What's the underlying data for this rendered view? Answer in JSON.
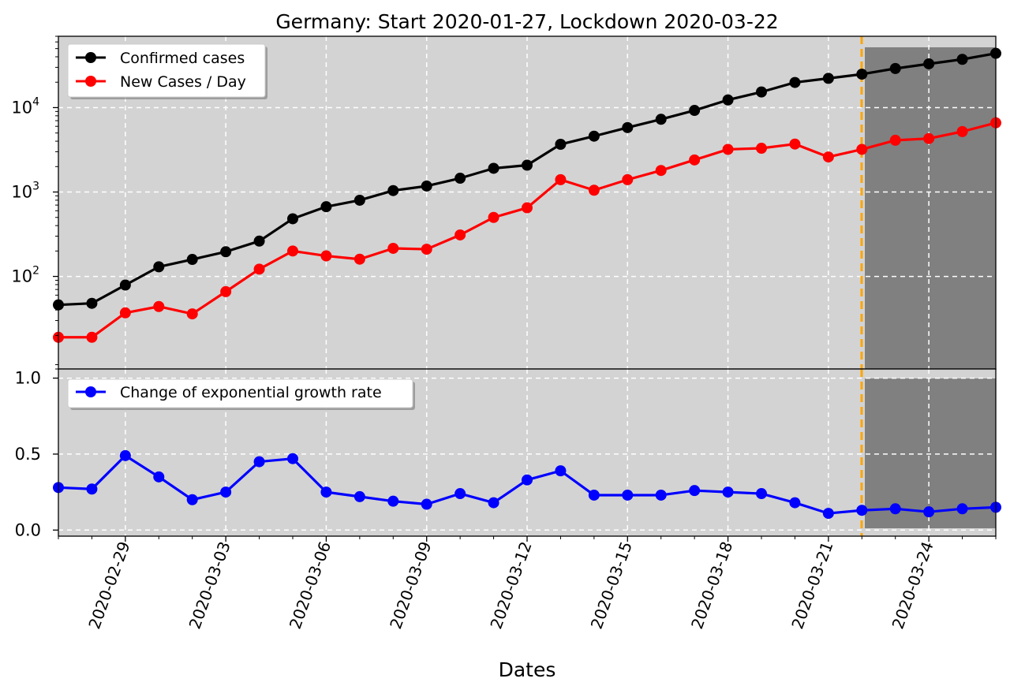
{
  "title": "Germany: Start 2020-01-27, Lockdown 2020-03-22",
  "colors": {
    "background": "#ffffff",
    "axes_bg": "#d3d3d3",
    "lockdown_shade": "#808080",
    "lockdown_line": "#ffa500",
    "grid": "#ffffff",
    "confirmed": "#000000",
    "new_cases": "#ff0000",
    "growth": "#0000ff"
  },
  "chart_data": [
    {
      "type": "line",
      "panel": "top",
      "yscale": "log",
      "ylim": [
        8,
        70000
      ],
      "grid": true,
      "legend_position": "top-left",
      "x": [
        "2020-02-27",
        "2020-02-28",
        "2020-02-29",
        "2020-03-01",
        "2020-03-02",
        "2020-03-03",
        "2020-03-04",
        "2020-03-05",
        "2020-03-06",
        "2020-03-07",
        "2020-03-08",
        "2020-03-09",
        "2020-03-10",
        "2020-03-11",
        "2020-03-12",
        "2020-03-13",
        "2020-03-14",
        "2020-03-15",
        "2020-03-16",
        "2020-03-17",
        "2020-03-18",
        "2020-03-19",
        "2020-03-20",
        "2020-03-21",
        "2020-03-22",
        "2020-03-23",
        "2020-03-24",
        "2020-03-25",
        "2020-03-26"
      ],
      "ytick_labels": [
        {
          "base": "10",
          "exp": "2",
          "value": 100
        },
        {
          "base": "10",
          "exp": "3",
          "value": 1000
        },
        {
          "base": "10",
          "exp": "4",
          "value": 10000
        }
      ],
      "series": [
        {
          "name": "Confirmed cases",
          "color": "#000000",
          "values": [
            46,
            48,
            79,
            130,
            159,
            196,
            262,
            482,
            670,
            799,
            1040,
            1176,
            1457,
            1908,
            2078,
            3675,
            4585,
            5795,
            7272,
            9257,
            12327,
            15320,
            19848,
            22213,
            24873,
            29056,
            32986,
            37323,
            43938
          ]
        },
        {
          "name": "New Cases / Day",
          "color": "#ff0000",
          "values": [
            19,
            19,
            37,
            44,
            36,
            66,
            122,
            200,
            175,
            160,
            215,
            210,
            310,
            500,
            650,
            1400,
            1050,
            1400,
            1800,
            2400,
            3200,
            3300,
            3700,
            2600,
            3200,
            4100,
            4300,
            5200,
            6600
          ]
        }
      ]
    },
    {
      "type": "line",
      "panel": "bottom",
      "ylim": [
        -0.04,
        1.06
      ],
      "yticks": [
        0.0,
        0.5,
        1.0
      ],
      "ytick_labels": [
        "0.0",
        "0.5",
        "1.0"
      ],
      "grid": true,
      "legend_position": "top-left",
      "xlabel": "Dates",
      "xtick_labels": [
        "2020-02-29",
        "2020-03-03",
        "2020-03-06",
        "2020-03-09",
        "2020-03-12",
        "2020-03-15",
        "2020-03-18",
        "2020-03-21",
        "2020-03-24"
      ],
      "series": [
        {
          "name": "Change of exponential growth rate",
          "color": "#0000ff",
          "values": [
            0.28,
            0.27,
            0.49,
            0.35,
            0.2,
            0.25,
            0.45,
            0.47,
            0.25,
            0.22,
            0.19,
            0.17,
            0.24,
            0.18,
            0.33,
            0.39,
            0.23,
            0.23,
            0.23,
            0.26,
            0.25,
            0.24,
            0.18,
            0.11,
            0.13,
            0.14,
            0.12,
            0.14,
            0.15
          ]
        }
      ]
    }
  ],
  "lockdown": {
    "date": "2020-03-22"
  }
}
